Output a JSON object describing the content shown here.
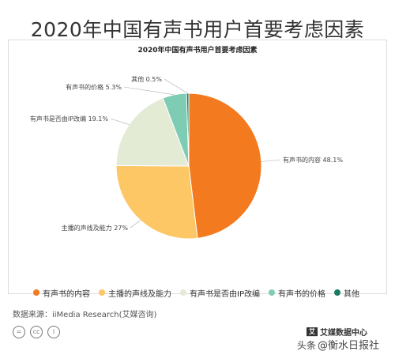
{
  "header": {
    "title": "2020年中国有声书用户首要考虑因素"
  },
  "chart_data": {
    "type": "pie",
    "title": "2020年中国有声书用户首要考虑因素",
    "categories": [
      "有声书的内容",
      "主播的声线及能力",
      "有声书是否由IP改编",
      "有声书的价格",
      "其他"
    ],
    "values": [
      48.1,
      27,
      19.1,
      5.3,
      0.5
    ],
    "unit": "%",
    "data_labels": [
      "有声书的内容 48.1%",
      "主播的声线及能力 27%",
      "有声书是否由IP改编 19.1%",
      "有声书的价格 5.3%",
      "其他 0.5%"
    ],
    "colors": [
      "#F47A20",
      "#FDC766",
      "#E4EBD5",
      "#7FCCB5",
      "#1A7A63"
    ],
    "legend": "bottom"
  },
  "footer": {
    "source": "数据来源：iiMedia Research(艾媒咨询)",
    "brand_logo": "艾",
    "brand": "艾媒数据中心",
    "watermark_prefix": "头条",
    "watermark": "@衡水日报社",
    "cc_icons": [
      "=",
      "cc",
      "i"
    ]
  }
}
